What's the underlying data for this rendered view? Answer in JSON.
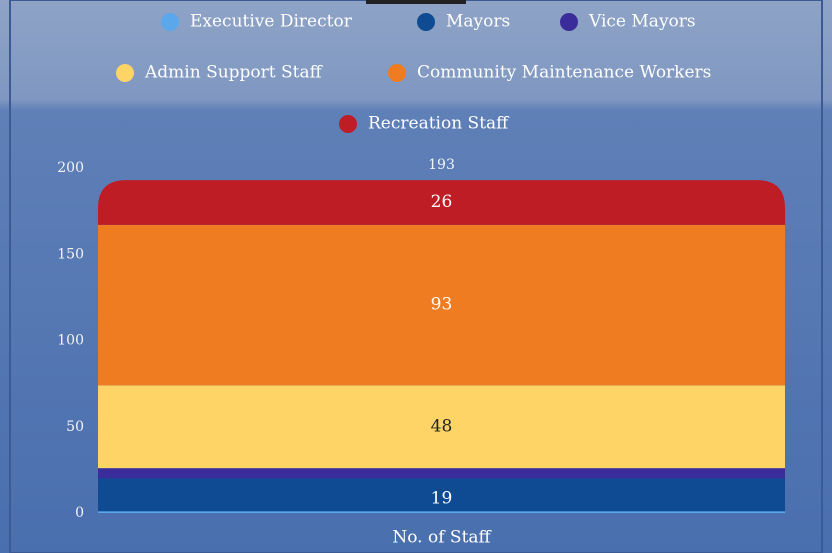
{
  "chart_data": {
    "type": "stacked-bar",
    "categories": [
      "No. of Staff"
    ],
    "series": [
      {
        "name": "Executive Director",
        "color": "#5aa7ec",
        "values": [
          1
        ]
      },
      {
        "name": "Mayors",
        "color": "#0e4b93",
        "values": [
          19
        ]
      },
      {
        "name": "Vice Mayors",
        "color": "#3b2c9c",
        "values": [
          6
        ]
      },
      {
        "name": "Admin Support Staff",
        "color": "#fed466",
        "values": [
          48
        ]
      },
      {
        "name": "Community Maintenance Workers",
        "color": "#f07c22",
        "values": [
          93
        ]
      },
      {
        "name": "Recreation Staff",
        "color": "#bf1d26",
        "values": [
          26
        ]
      }
    ],
    "totals": [
      193
    ],
    "ylim": [
      0,
      200
    ],
    "yticks": [
      0,
      50,
      100,
      150,
      200
    ]
  }
}
